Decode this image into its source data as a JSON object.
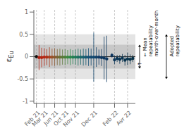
{
  "chart_data": {
    "type": "scatter",
    "y_label": "εEu",
    "xlim": [
      -1,
      38
    ],
    "xticks": [
      {
        "value": 0,
        "label": "Feb 21"
      },
      {
        "value": 3,
        "label": "Mar 21"
      },
      {
        "value": 7,
        "label": "Jun 21"
      },
      {
        "value": 11,
        "label": "Oct 21"
      },
      {
        "value": 15,
        "label": "Nov 21"
      },
      {
        "value": 22,
        "label": "Dec 21"
      },
      {
        "value": 30,
        "label": "Feb 22"
      },
      {
        "value": 35,
        "label": "Avr 22"
      }
    ],
    "ylim": [
      -1.05,
      1.05
    ],
    "yticks": [
      -1,
      -0.5,
      0,
      0.5,
      1
    ],
    "grid": false,
    "x": [
      0,
      1,
      2,
      3,
      4,
      5,
      6,
      7,
      8,
      9,
      10,
      11,
      12,
      13,
      14,
      15,
      16,
      17,
      18,
      19,
      20,
      21,
      22,
      23,
      24,
      25,
      26,
      27,
      29,
      30,
      31,
      32,
      33,
      34,
      35,
      36,
      37
    ],
    "values": [
      0.0,
      -0.02,
      -0.02,
      -0.01,
      -0.01,
      -0.01,
      -0.01,
      -0.01,
      -0.01,
      -0.01,
      -0.01,
      -0.01,
      -0.01,
      -0.01,
      -0.01,
      -0.01,
      -0.01,
      -0.01,
      -0.01,
      -0.01,
      -0.01,
      -0.01,
      -0.01,
      -0.01,
      -0.01,
      -0.02,
      -0.03,
      -0.05,
      0.03,
      -0.07,
      -0.04,
      -0.06,
      -0.03,
      -0.08,
      -0.05,
      -0.06,
      -0.04
    ],
    "errors": [
      0.04,
      0.28,
      0.22,
      0.2,
      0.18,
      0.22,
      0.19,
      0.2,
      0.18,
      0.19,
      0.17,
      0.18,
      0.16,
      0.18,
      0.16,
      0.17,
      0.19,
      0.17,
      0.19,
      0.18,
      0.2,
      0.19,
      0.55,
      0.22,
      0.17,
      0.19,
      0.48,
      0.52,
      0.05,
      0.1,
      0.08,
      0.1,
      0.09,
      0.12,
      0.14,
      0.11,
      0.08
    ],
    "colors": [
      "#111111",
      "#b02010",
      "#b52510",
      "#b82515",
      "#b03015",
      "#a84020",
      "#9a5025",
      "#8a5830",
      "#7a6435",
      "#6a7035",
      "#5a7838",
      "#4a8038",
      "#3a8840",
      "#2a8848",
      "#208050",
      "#1e7858",
      "#1c7060",
      "#1a6868",
      "#186070",
      "#165870",
      "#145075",
      "#124870",
      "#104870",
      "#104068",
      "#103865",
      "#0e3860",
      "#0e3860",
      "#0d3760",
      "#0c3660",
      "#0c3658",
      "#0b3555",
      "#0a3452",
      "#0a3450",
      "#09334e",
      "#09334c",
      "#08324a",
      "#083248"
    ],
    "bands": [
      {
        "y": [
          -0.5,
          0.5
        ],
        "color": "#e4e4e4",
        "label": [
          "Adopted",
          "repeatability"
        ]
      },
      {
        "y": [
          -0.27,
          0.27
        ],
        "color": "#c8c8c8",
        "label": [
          "←  Mean",
          "repeatability",
          "month-over-month"
        ]
      }
    ],
    "hline": 0.0,
    "vlines": [
      0,
      3,
      7,
      11,
      15,
      22,
      30,
      35
    ],
    "annotations": [
      "←"
    ]
  }
}
